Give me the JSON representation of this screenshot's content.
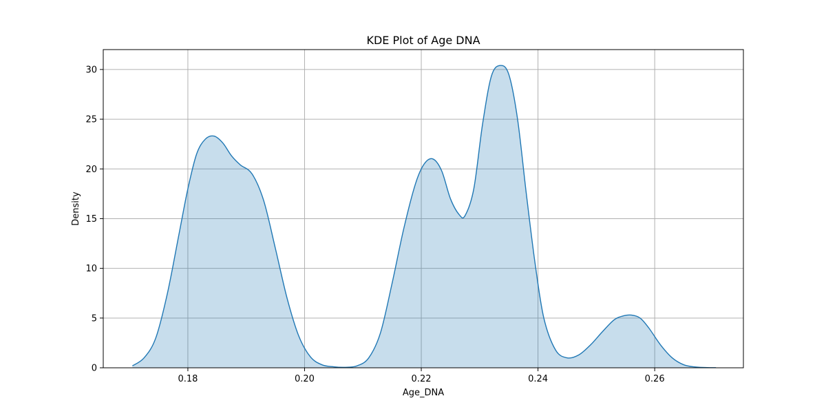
{
  "chart_data": {
    "type": "area",
    "title": "KDE Plot of Age DNA",
    "xlabel": "Age_DNA",
    "ylabel": "Density",
    "xlim": [
      0.1655,
      0.2752
    ],
    "ylim": [
      0,
      32
    ],
    "xticks": [
      "0.18",
      "0.20",
      "0.22",
      "0.24",
      "0.26"
    ],
    "yticks": [
      "0",
      "5",
      "10",
      "15",
      "20",
      "25",
      "30"
    ],
    "grid": true,
    "series": [
      {
        "color": "#1f77b4",
        "fill_color": "#1f77b4",
        "fill_opacity": 0.25,
        "x": [
          0.1705,
          0.1725,
          0.1745,
          0.1765,
          0.1785,
          0.18,
          0.1815,
          0.183,
          0.1845,
          0.186,
          0.1875,
          0.189,
          0.191,
          0.193,
          0.195,
          0.197,
          0.199,
          0.201,
          0.203,
          0.205,
          0.207,
          0.209,
          0.211,
          0.213,
          0.215,
          0.217,
          0.219,
          0.2205,
          0.222,
          0.2235,
          0.225,
          0.2265,
          0.2275,
          0.229,
          0.2305,
          0.232,
          0.2335,
          0.235,
          0.2365,
          0.238,
          0.2395,
          0.241,
          0.243,
          0.245,
          0.247,
          0.249,
          0.251,
          0.253,
          0.2545,
          0.256,
          0.2575,
          0.259,
          0.261,
          0.263,
          0.265,
          0.267,
          0.269,
          0.2705
        ],
        "y": [
          0.2,
          1.0,
          3.0,
          7.5,
          13.5,
          18.0,
          21.5,
          23.0,
          23.3,
          22.6,
          21.3,
          20.4,
          19.5,
          16.8,
          12.0,
          7.0,
          3.2,
          1.1,
          0.3,
          0.1,
          0.05,
          0.2,
          1.0,
          3.5,
          8.5,
          14.0,
          18.5,
          20.5,
          21.0,
          19.8,
          17.0,
          15.4,
          15.3,
          18.0,
          24.5,
          29.3,
          30.4,
          29.5,
          25.0,
          17.5,
          10.5,
          5.0,
          1.8,
          1.0,
          1.3,
          2.3,
          3.6,
          4.8,
          5.2,
          5.3,
          5.0,
          4.0,
          2.3,
          1.0,
          0.3,
          0.08,
          0.02,
          0.01
        ]
      }
    ]
  }
}
